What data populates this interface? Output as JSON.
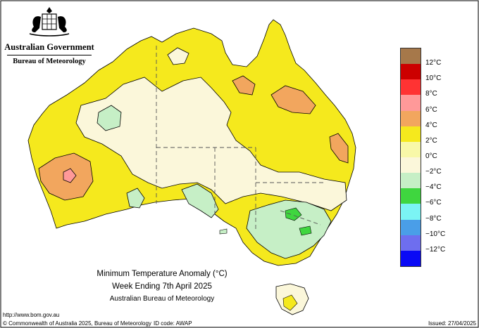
{
  "header": {
    "government": "Australian Government",
    "bureau": "Bureau of Meteorology"
  },
  "legend": {
    "labels": [
      "12°C",
      "10°C",
      "8°C",
      "6°C",
      "4°C",
      "2°C",
      "0°C",
      "−2°C",
      "−4°C",
      "−6°C",
      "−8°C",
      "−10°C",
      "−12°C"
    ],
    "colors": [
      "#a6784a",
      "#cc0000",
      "#ff3333",
      "#ff9999",
      "#f2a65e",
      "#f5e91d",
      "#f8f8a8",
      "#fbf7da",
      "#c6efc6",
      "#3fd63f",
      "#7bf4f4",
      "#4a9ee8",
      "#6e6eef",
      "#0a0af5"
    ]
  },
  "title": {
    "line1": "Minimum Temperature Anomaly (°C)",
    "line2": "Week Ending 7th April 2025",
    "line3": "Australian Bureau of Meteorology"
  },
  "footer": {
    "url": "http://www.bom.gov.au",
    "copyright": "© Commonwealth of Australia 2025, Bureau of Meteorology",
    "id_code": "ID code: AWAP",
    "issued": "Issued: 27/04/2025"
  },
  "map": {
    "colors": {
      "yellow": "#f5e91d",
      "orange": "#f2a65e",
      "pink": "#ff9999",
      "cream": "#fbf7da",
      "lightgreen": "#c6efc6",
      "green": "#3fd63f"
    }
  }
}
